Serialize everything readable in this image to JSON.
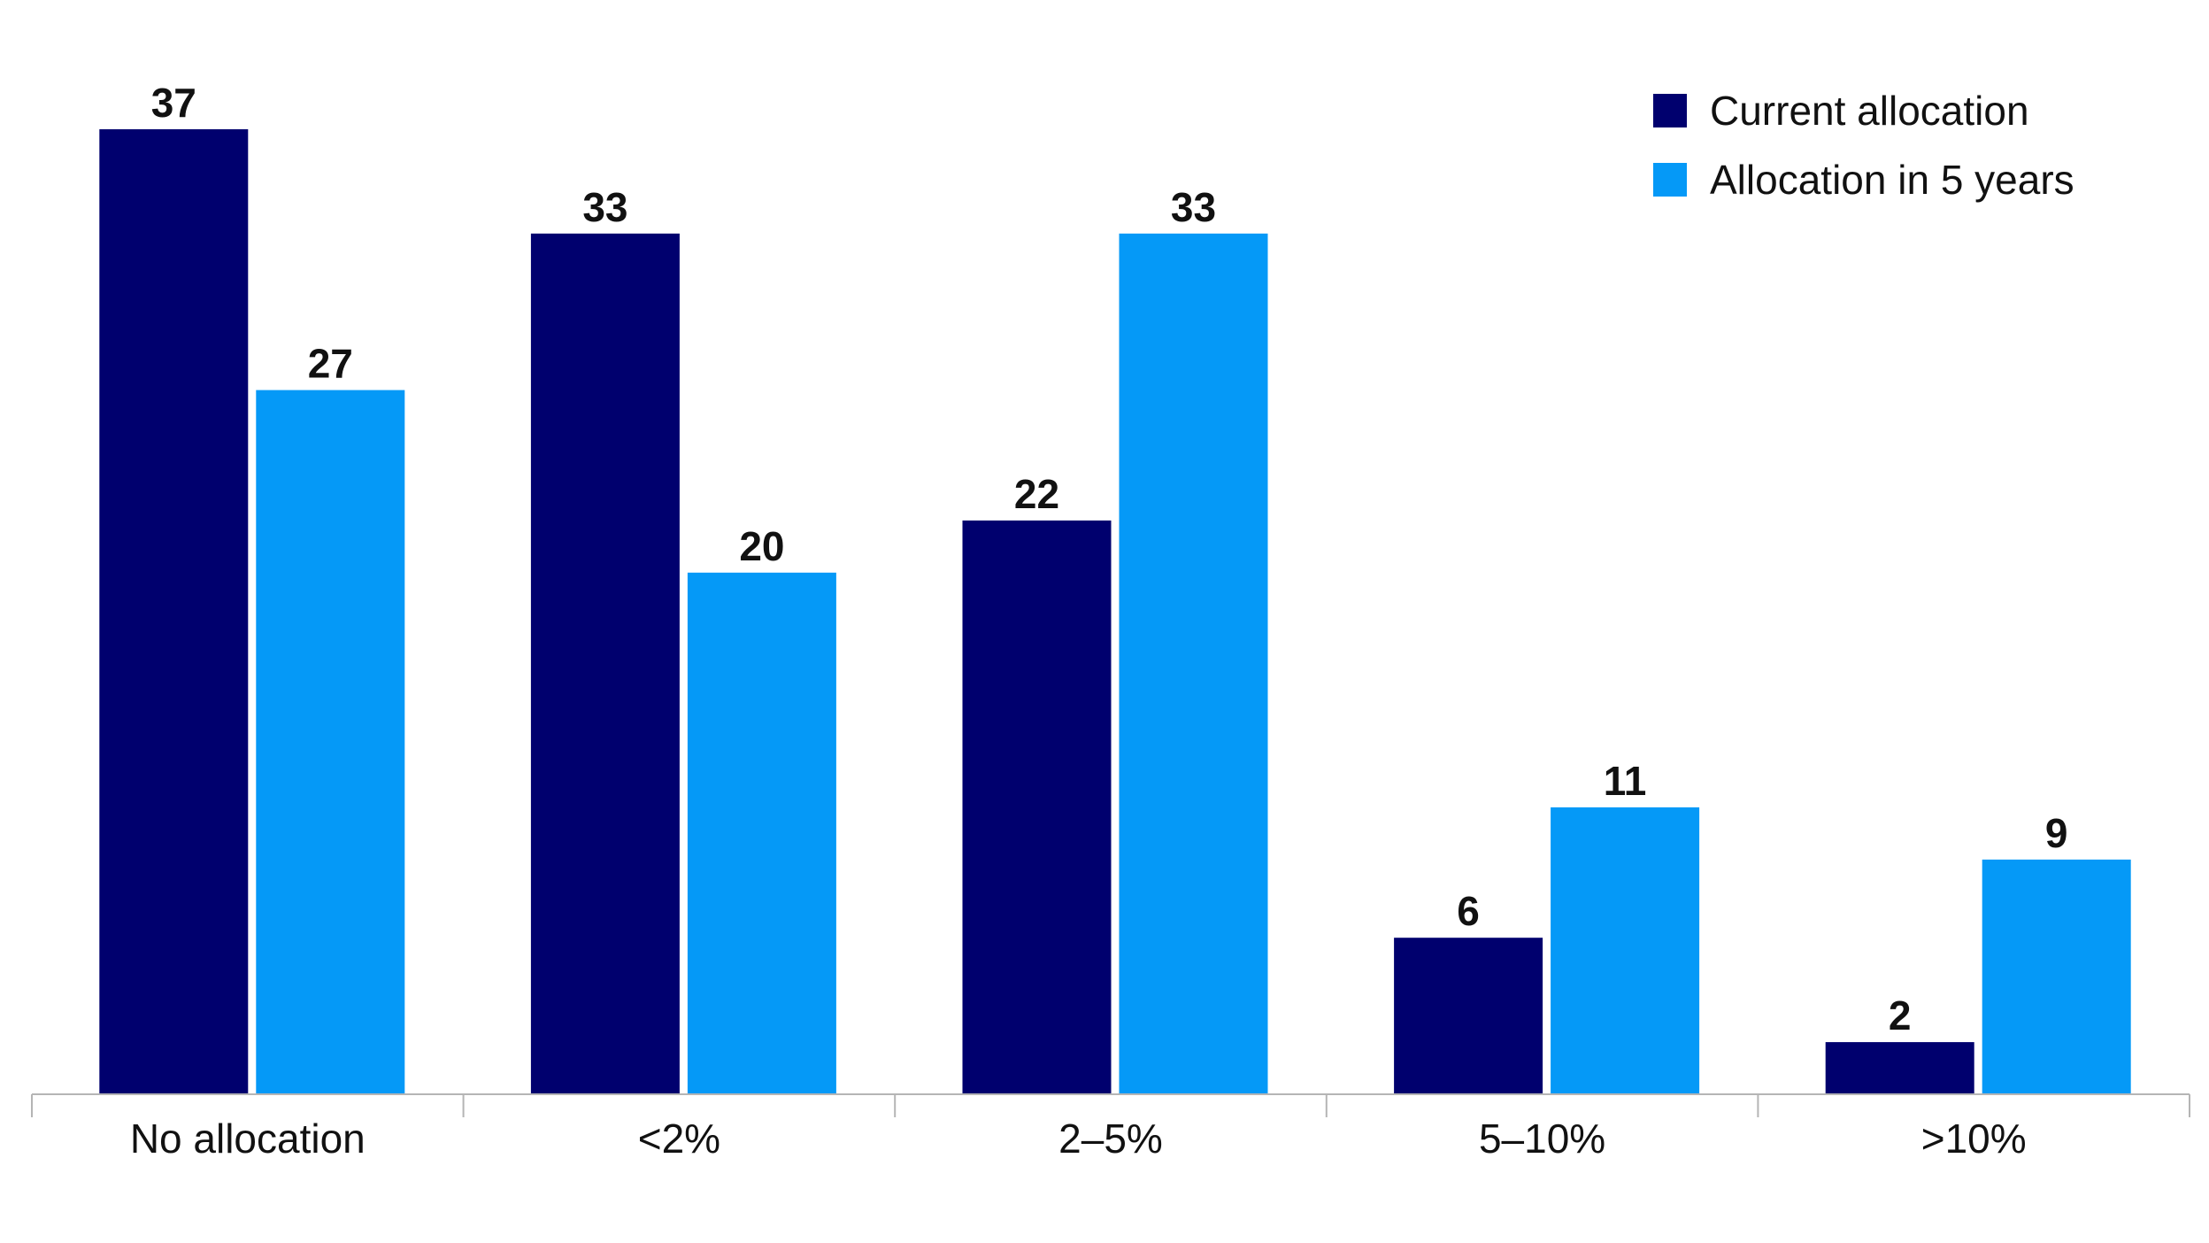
{
  "chart_data": {
    "type": "bar",
    "title": "",
    "xlabel": "",
    "ylabel": "",
    "categories": [
      "No allocation",
      "<2%",
      "2–5%",
      "5–10%",
      ">10%"
    ],
    "series": [
      {
        "name": "Current allocation",
        "color": "#00006e",
        "values": [
          37,
          33,
          22,
          6,
          2
        ]
      },
      {
        "name": "Allocation in 5 years",
        "color": "#0599f7",
        "values": [
          27,
          20,
          33,
          11,
          9
        ]
      }
    ],
    "ylim": [
      0,
      37
    ],
    "grid": false,
    "legend": "top-right",
    "data_labels": true
  }
}
